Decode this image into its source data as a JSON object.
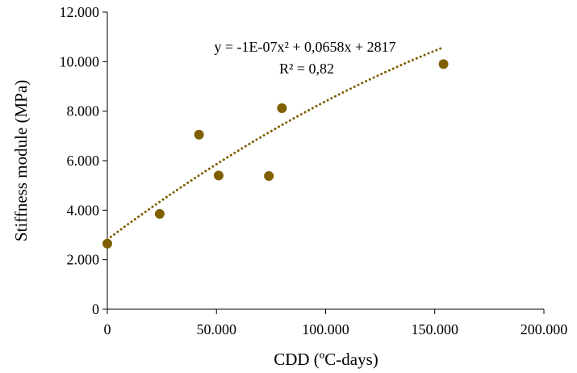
{
  "chart_data": {
    "type": "scatter",
    "title": "",
    "xlabel": "CDD (ºC-days)",
    "ylabel": "Stiffness module (MPa)",
    "xlim": [
      0,
      200000
    ],
    "ylim": [
      0,
      12000
    ],
    "grid": false,
    "legend": "none",
    "x_tick_labels": [
      "0",
      "50.000",
      "100.000",
      "150.000",
      "200.000"
    ],
    "y_tick_labels": [
      "0",
      "2.000",
      "4.000",
      "6.000",
      "8.000",
      "10.000",
      "12.000"
    ],
    "series": [
      {
        "color": "#7f5f00",
        "points": [
          {
            "x": 0,
            "y": 2650
          },
          {
            "x": 24000,
            "y": 3850
          },
          {
            "x": 42000,
            "y": 7050
          },
          {
            "x": 51000,
            "y": 5400
          },
          {
            "x": 74000,
            "y": 5380
          },
          {
            "x": 80000,
            "y": 8120
          },
          {
            "x": 154000,
            "y": 9900
          }
        ]
      }
    ],
    "trendline": {
      "type": "polynomial",
      "color": "#7f5f00",
      "style": "dotted",
      "a": -1e-07,
      "b": 0.0658,
      "c": 2817,
      "x_range": [
        0,
        154000
      ]
    },
    "annotations": {
      "equation": "y = -1E-07x² + 0,0658x + 2817",
      "r_squared": "R² = 0,82"
    }
  }
}
